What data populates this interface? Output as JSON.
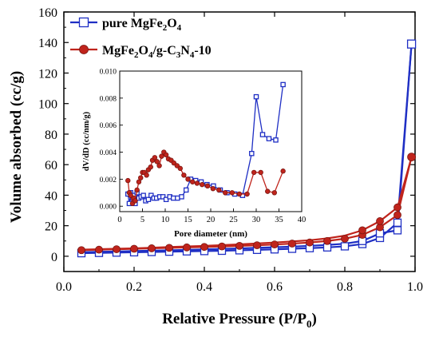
{
  "chart_data": [
    {
      "type": "line",
      "xlabel": "Relative Pressure (P/P0)",
      "xlabel_main": "Relative Pressure (P/P",
      "xlabel_sub": "0",
      "xlabel_close": ")",
      "ylabel": "Volume absorbed (cc/g)",
      "xlim": [
        0.0,
        1.0
      ],
      "ylim": [
        -10,
        160
      ],
      "xticks": [
        "0.0",
        "0.2",
        "0.4",
        "0.6",
        "0.8",
        "1.0"
      ],
      "yticks": [
        "0",
        "20",
        "40",
        "60",
        "80",
        "100",
        "120",
        "140",
        "160"
      ],
      "legend": [
        {
          "text": "pure MgFe2O4",
          "parts": [
            [
              "pure MgFe",
              ""
            ],
            [
              "2",
              "sub"
            ],
            [
              "O",
              ""
            ],
            [
              "4",
              "sub"
            ]
          ]
        },
        {
          "text": "MgFe2O4/g-C3N4-10",
          "parts": [
            [
              "MgFe",
              ""
            ],
            [
              "2",
              "sub"
            ],
            [
              "O",
              ""
            ],
            [
              "4",
              "sub"
            ],
            [
              "/g-C",
              ""
            ],
            [
              "3",
              "sub"
            ],
            [
              "N",
              ""
            ],
            [
              "4",
              "sub"
            ],
            [
              "-10",
              ""
            ]
          ]
        }
      ],
      "legend_position": "top-left",
      "series": [
        {
          "name": "pure MgFe2O4",
          "color": "#1f2fc4",
          "marker": "open-square",
          "x": [
            0.05,
            0.1,
            0.15,
            0.2,
            0.25,
            0.3,
            0.35,
            0.4,
            0.45,
            0.5,
            0.55,
            0.6,
            0.65,
            0.7,
            0.75,
            0.8,
            0.85,
            0.9,
            0.95,
            0.99
          ],
          "y": [
            2.0,
            2.2,
            2.4,
            2.6,
            2.8,
            3.0,
            3.2,
            3.4,
            3.6,
            3.9,
            4.2,
            4.5,
            4.9,
            5.3,
            5.8,
            6.5,
            8.0,
            12.0,
            22.0,
            139.0
          ],
          "desorption_y": [
            2.6,
            2.9,
            3.1,
            3.4,
            3.7,
            3.9,
            4.2,
            4.5,
            4.8,
            5.1,
            5.5,
            5.9,
            6.3,
            6.8,
            7.4,
            8.2,
            10.0,
            15.0,
            17.0,
            139.0
          ]
        },
        {
          "name": "MgFe2O4/g-C3N4-10",
          "color": "#c0241c",
          "marker": "filled-circle",
          "x": [
            0.05,
            0.1,
            0.15,
            0.2,
            0.25,
            0.3,
            0.35,
            0.4,
            0.45,
            0.5,
            0.55,
            0.6,
            0.65,
            0.7,
            0.75,
            0.8,
            0.85,
            0.9,
            0.95,
            0.99
          ],
          "y": [
            4.0,
            4.3,
            4.6,
            4.9,
            5.2,
            5.5,
            5.8,
            6.1,
            6.4,
            6.8,
            7.2,
            7.7,
            8.3,
            9.0,
            10.0,
            11.5,
            14.0,
            19.0,
            27.0,
            65.0
          ],
          "desorption_y": [
            4.3,
            4.6,
            4.9,
            5.2,
            5.6,
            6.0,
            6.4,
            6.8,
            7.3,
            7.8,
            8.4,
            9.0,
            9.7,
            10.5,
            11.7,
            13.5,
            17.0,
            23.0,
            32.0,
            65.0
          ]
        }
      ]
    },
    {
      "type": "line",
      "role": "inset",
      "xlabel": "Pore diameter (nm)",
      "ylabel": "dV/dD (cc/nm/g)",
      "xlim": [
        0,
        40
      ],
      "ylim": [
        -0.0004,
        0.01
      ],
      "xticks": [
        "0",
        "5",
        "10",
        "15",
        "20",
        "25",
        "30",
        "35",
        "40"
      ],
      "yticks": [
        "0.000",
        "0.002",
        "0.004",
        "0.006",
        "0.008",
        "0.010"
      ],
      "series": [
        {
          "name": "pure MgFe2O4",
          "color": "#1f2fc4",
          "marker": "open-square",
          "x": [
            1.8,
            2.1,
            2.4,
            2.8,
            3.1,
            3.4,
            3.8,
            4.2,
            4.7,
            5.2,
            5.7,
            6.3,
            6.9,
            7.5,
            8.1,
            8.8,
            9.5,
            10.2,
            11.0,
            11.8,
            12.7,
            13.6,
            14.6,
            15.6,
            16.7,
            17.9,
            19.2,
            20.6,
            22.1,
            23.6,
            25.3,
            27.0,
            29.0,
            30.0,
            31.4,
            32.8,
            34.3,
            35.9
          ],
          "y": [
            0.0009,
            0.0002,
            0.001,
            0.0006,
            0.0008,
            0.0002,
            0.001,
            0.0006,
            0.0007,
            0.0008,
            0.0004,
            0.0005,
            0.0008,
            0.0006,
            0.0006,
            0.0007,
            0.0007,
            0.0005,
            0.0007,
            0.0006,
            0.0006,
            0.0007,
            0.0012,
            0.002,
            0.0019,
            0.0018,
            0.0016,
            0.0015,
            0.0012,
            0.001,
            0.0009,
            0.0008,
            0.0039,
            0.0081,
            0.0053,
            0.005,
            0.0049,
            0.009
          ]
        },
        {
          "name": "MgFe2O4/g-C3N4-10",
          "color": "#c0241c",
          "marker": "filled-circle",
          "x": [
            1.8,
            2.1,
            2.4,
            2.8,
            3.1,
            3.4,
            3.8,
            4.2,
            4.6,
            5.0,
            5.4,
            5.9,
            6.3,
            6.8,
            7.2,
            7.7,
            8.2,
            8.7,
            9.2,
            9.7,
            10.2,
            10.7,
            11.3,
            11.9,
            12.6,
            13.3,
            14.1,
            15.0,
            16.0,
            17.0,
            18.1,
            19.3,
            20.5,
            21.8,
            23.2,
            24.7,
            26.3,
            28.0,
            29.5,
            31.0,
            32.5,
            34.0,
            35.9
          ],
          "y": [
            0.0019,
            0.001,
            0.0008,
            0.0002,
            0.0006,
            0.0004,
            0.0012,
            0.0018,
            0.0021,
            0.0025,
            0.0025,
            0.0023,
            0.0027,
            0.0029,
            0.0034,
            0.0036,
            0.0033,
            0.003,
            0.0037,
            0.004,
            0.0038,
            0.0035,
            0.0034,
            0.0032,
            0.003,
            0.0028,
            0.0023,
            0.002,
            0.0018,
            0.0017,
            0.0016,
            0.0015,
            0.0013,
            0.0012,
            0.001,
            0.001,
            0.0009,
            0.0009,
            0.0025,
            0.0025,
            0.0011,
            0.001,
            0.0026
          ]
        }
      ]
    }
  ]
}
